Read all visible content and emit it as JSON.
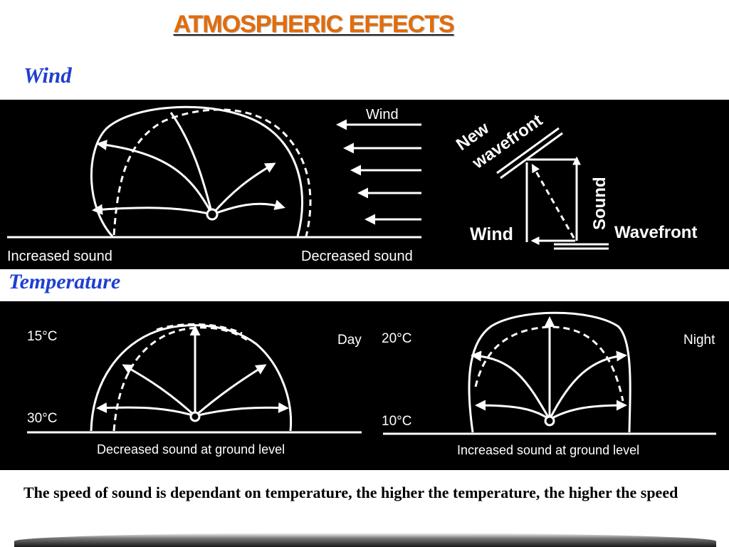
{
  "title": "ATMOSPHERIC EFFECTS",
  "sections": {
    "wind": {
      "heading": "Wind",
      "labels": {
        "wind_arrows": "Wind",
        "increased": "Increased sound",
        "decreased": "Decreased sound",
        "new_wavefront_line1": "New",
        "new_wavefront_line2": "wavefront",
        "vector_wind": "Wind",
        "vector_sound": "Sound",
        "vector_wavefront": "Wavefront"
      }
    },
    "temperature": {
      "heading": "Temperature",
      "day": {
        "top_temp": "15°C",
        "bottom_temp": "30°C",
        "period": "Day",
        "caption": "Decreased sound at ground level"
      },
      "night": {
        "top_temp": "20°C",
        "bottom_temp": "10°C",
        "period": "Night",
        "caption": "Increased sound at ground level"
      }
    }
  },
  "caption": "The speed of sound is dependant on temperature, the higher the temperature, the higher the speed",
  "colors": {
    "title": "#e36c0a",
    "section_heading": "#1f3fd1",
    "panel_bg": "#000000",
    "line": "#ffffff"
  }
}
